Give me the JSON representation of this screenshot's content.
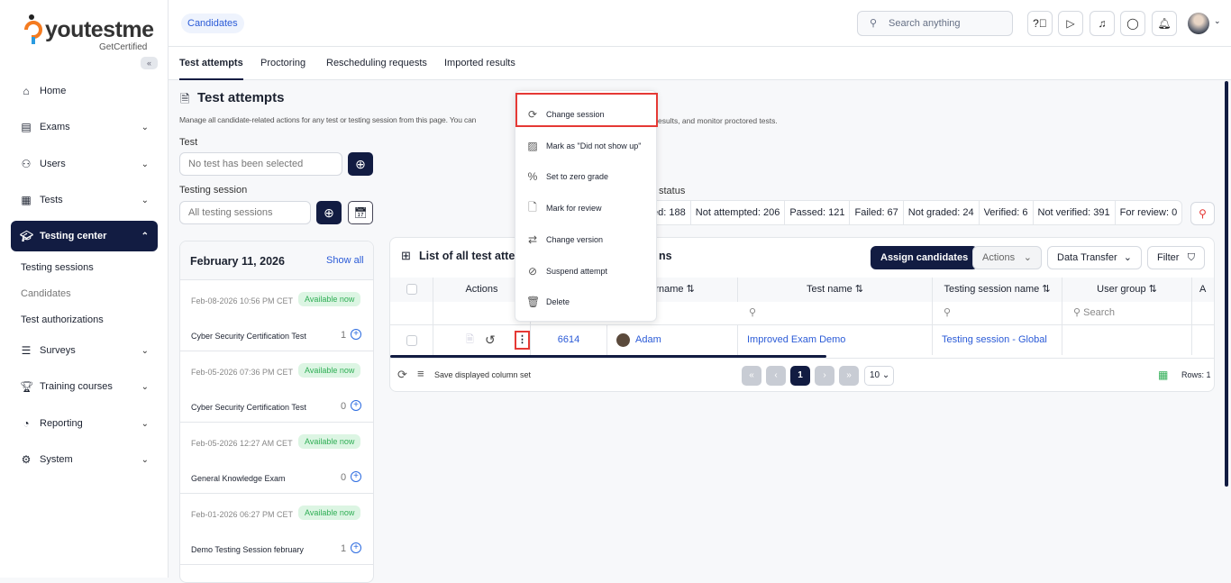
{
  "brand": {
    "logo_text": "youtestme",
    "tagline": "GetCertified"
  },
  "sidebar": {
    "items": [
      {
        "label": "Home",
        "icon": "home-icon"
      },
      {
        "label": "Exams",
        "icon": "document-icon"
      },
      {
        "label": "Users",
        "icon": "users-icon"
      },
      {
        "label": "Tests",
        "icon": "tests-icon"
      },
      {
        "label": "Testing center",
        "icon": "graduation-icon"
      },
      {
        "label": "Surveys",
        "icon": "list-icon"
      },
      {
        "label": "Training courses",
        "icon": "trophy-icon"
      },
      {
        "label": "Reporting",
        "icon": "chart-icon"
      },
      {
        "label": "System",
        "icon": "gear-icon"
      }
    ],
    "sub_items": [
      "Testing sessions",
      "Candidates",
      "Test authorizations"
    ]
  },
  "header": {
    "breadcrumb": "Candidates",
    "search_placeholder": "Search anything"
  },
  "tabs": [
    "Test attempts",
    "Proctoring",
    "Rescheduling requests",
    "Imported results"
  ],
  "page": {
    "title": "Test attempts",
    "description_left": "Manage all candidate-related actions for any test or testing session from this page. You can",
    "description_right": "esults, and monitor proctored tests.",
    "test_label": "Test",
    "test_placeholder": "No test has been selected",
    "session_label": "Testing session",
    "session_placeholder": "All testing sessions",
    "status_label": "status"
  },
  "sessions": {
    "date": "February 11, 2026",
    "show_all": "Show all",
    "items": [
      {
        "date": "Feb-08-2026 10:56 PM CET",
        "status": "Available now",
        "name": "Cyber Security Certification Test",
        "count": "1"
      },
      {
        "date": "Feb-05-2026 07:36 PM CET",
        "status": "Available now",
        "name": "Cyber Security Certification Test",
        "count": "0"
      },
      {
        "date": "Feb-05-2026 12:27 AM CET",
        "status": "Available now",
        "name": "General Knowledge Exam",
        "count": "0"
      },
      {
        "date": "Feb-01-2026 06:27 PM CET",
        "status": "Available now",
        "name": "Demo Testing Session february",
        "count": "1"
      }
    ]
  },
  "stats": [
    "ted: 188",
    "Not attempted: 206",
    "Passed: 121",
    "Failed: 67",
    "Not graded: 24",
    "Verified: 6",
    "Not verified: 391",
    "For review: 0"
  ],
  "table": {
    "title_left": "List of all test attem",
    "title_right": "ns",
    "assign": "Assign candidates",
    "actions": "Actions",
    "data_transfer": "Data Transfer",
    "filter": "Filter",
    "columns": [
      "Actions",
      "ername",
      "Test name",
      "Testing session name",
      "User group",
      "A"
    ],
    "search_placeholder": "Search",
    "row": {
      "id": "6614",
      "user": "Adam",
      "test": "Improved Exam Demo",
      "session": "Testing session - Global"
    },
    "save_columns": "Save displayed column set",
    "page": "1",
    "page_size": "10",
    "rows": "Rows: 1"
  },
  "menu": {
    "items": [
      {
        "label": "Change session",
        "icon": "refresh-icon"
      },
      {
        "label": "Mark as \"Did not show up\"",
        "icon": "hatch-icon"
      },
      {
        "label": "Set to zero grade",
        "icon": "percent-icon"
      },
      {
        "label": "Mark for review",
        "icon": "review-icon"
      },
      {
        "label": "Change version",
        "icon": "swap-icon"
      },
      {
        "label": "Suspend attempt",
        "icon": "ban-icon"
      },
      {
        "label": "Delete",
        "icon": "trash-icon"
      }
    ]
  },
  "colors": {
    "navy": "#121c42",
    "link": "#2b5bd7",
    "highlight": "#e53935",
    "available": "#2fae55"
  }
}
